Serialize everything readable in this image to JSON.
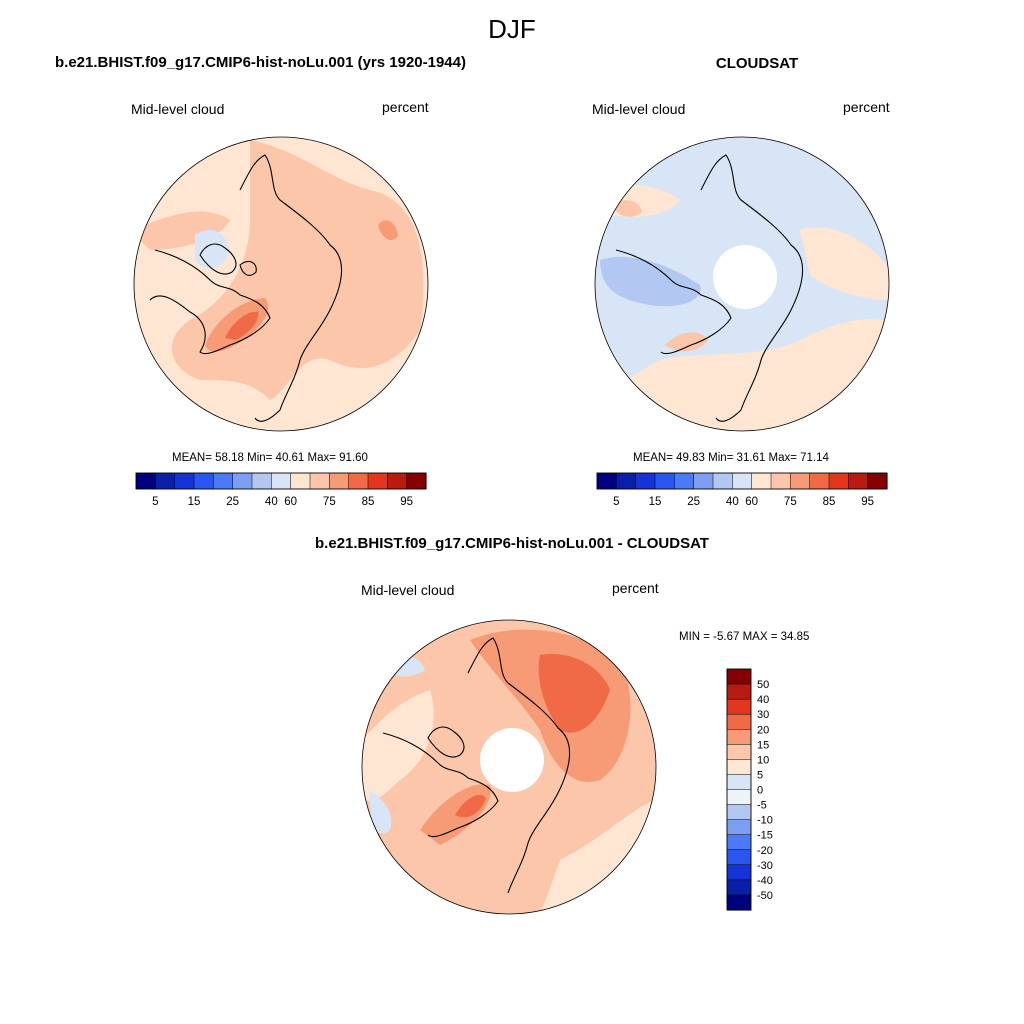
{
  "title": "DJF",
  "colors": {
    "abs_fill": [
      "#00007f",
      "#0a1fa8",
      "#1633d6",
      "#2a55f0",
      "#4a7af5",
      "#7d9ff2",
      "#b2c8f3",
      "#d8e5f6",
      "#ffe6d2",
      "#fbc6a9",
      "#f79a76",
      "#f06a47",
      "#e2361f",
      "#b81b0f",
      "#850000"
    ],
    "diff_fill": [
      "#00007f",
      "#0a1fa8",
      "#1633d6",
      "#2a55f0",
      "#4a7af5",
      "#7d9ff2",
      "#b2c8f3",
      "#d8e5f6",
      "#ffe6d2",
      "#fbc6a9",
      "#f79a76",
      "#f06a47",
      "#e2361f",
      "#b81b0f",
      "#850000"
    ]
  },
  "panels": [
    {
      "title": "b.e21.BHIST.f09_g17.CMIP6-hist-noLu.001 (yrs 1920-1944)",
      "variable": "Mid-level cloud",
      "units": "percent",
      "stats": "MEAN=  58.18  Min=  40.61  Max=  91.60",
      "colorbar_labels": [
        "5",
        "15",
        "25",
        "40",
        "60",
        "75",
        "85",
        "95"
      ]
    },
    {
      "title": "CLOUDSAT",
      "variable": "Mid-level cloud",
      "units": "percent",
      "stats": "MEAN=  49.83  Min=  31.61  Max=  71.14",
      "colorbar_labels": [
        "5",
        "15",
        "25",
        "40",
        "60",
        "75",
        "85",
        "95"
      ]
    },
    {
      "title": "b.e21.BHIST.f09_g17.CMIP6-hist-noLu.001 - CLOUDSAT",
      "variable": "Mid-level cloud",
      "units": "percent",
      "stats": "MIN =  -5.67 MAX =  34.85",
      "colorbar_labels": [
        "50",
        "40",
        "30",
        "20",
        "15",
        "10",
        "5",
        "0",
        "-5",
        "-10",
        "-15",
        "-20",
        "-30",
        "-40",
        "-50"
      ]
    }
  ]
}
